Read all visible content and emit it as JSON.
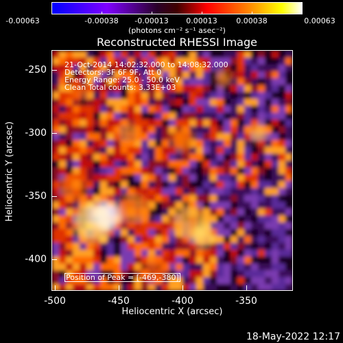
{
  "colorbar": {
    "tick_labels": [
      "-0.00063",
      "-0.00038",
      "-0.00013",
      "0.00013",
      "0.00038",
      "0.00063"
    ],
    "unit_label": "(photons cm⁻² s⁻¹ asec⁻²)",
    "colors": [
      "#0000ff",
      "#7f00ff",
      "#2a002a",
      "#ff0000",
      "#ff8000",
      "#ffff00",
      "#ffffff"
    ]
  },
  "plot": {
    "title": "Reconstructed RHESSI Image",
    "xlabel": "Heliocentric X (arcsec)",
    "ylabel": "Heliocentric Y (arcsec)",
    "x_ticks": [
      "-500",
      "-450",
      "-400",
      "-350"
    ],
    "y_ticks": [
      "-250",
      "-300",
      "-350",
      "-400"
    ],
    "info_lines": [
      "21-Oct-2014 14:02:32.000 to 14:08:32.000",
      "Detectors: 3F 6F 9F, Att 0",
      "Energy Range: 25.0 - 50.0 keV",
      "Clean    Total counts: 3.33E+03"
    ],
    "peak_label": "Position of Peak = [-469,-380]"
  },
  "footer": {
    "timestamp": "18-May-2022 12:17"
  }
}
